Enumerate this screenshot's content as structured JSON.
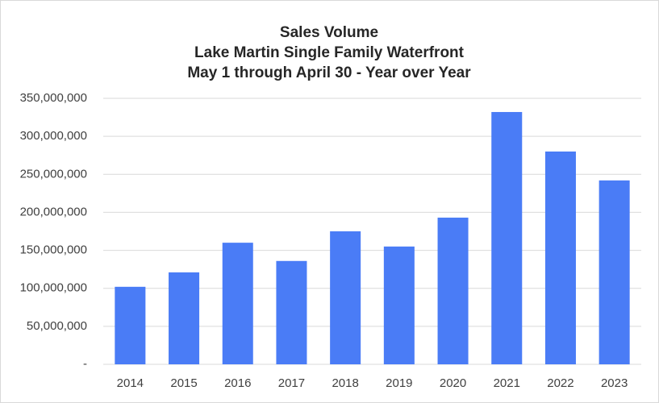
{
  "chart_data": {
    "type": "bar",
    "title": [
      "Sales Volume",
      "Lake Martin Single Family Waterfront",
      "May 1 through April 30 - Year over Year"
    ],
    "categories": [
      "2014",
      "2015",
      "2016",
      "2017",
      "2018",
      "2019",
      "2020",
      "2021",
      "2022",
      "2023"
    ],
    "values": [
      102000000,
      121000000,
      160000000,
      136000000,
      175000000,
      155000000,
      193000000,
      332000000,
      280000000,
      242000000
    ],
    "color": "#4a7cf6",
    "ylim": [
      0,
      350000000
    ],
    "yticks": [
      {
        "value": 0,
        "label": "-"
      },
      {
        "value": 50000000,
        "label": "50,000,000"
      },
      {
        "value": 100000000,
        "label": "100,000,000"
      },
      {
        "value": 150000000,
        "label": "150,000,000"
      },
      {
        "value": 200000000,
        "label": "200,000,000"
      },
      {
        "value": 250000000,
        "label": "250,000,000"
      },
      {
        "value": 300000000,
        "label": "300,000,000"
      },
      {
        "value": 350000000,
        "label": "350,000,000"
      }
    ],
    "grid": true
  }
}
